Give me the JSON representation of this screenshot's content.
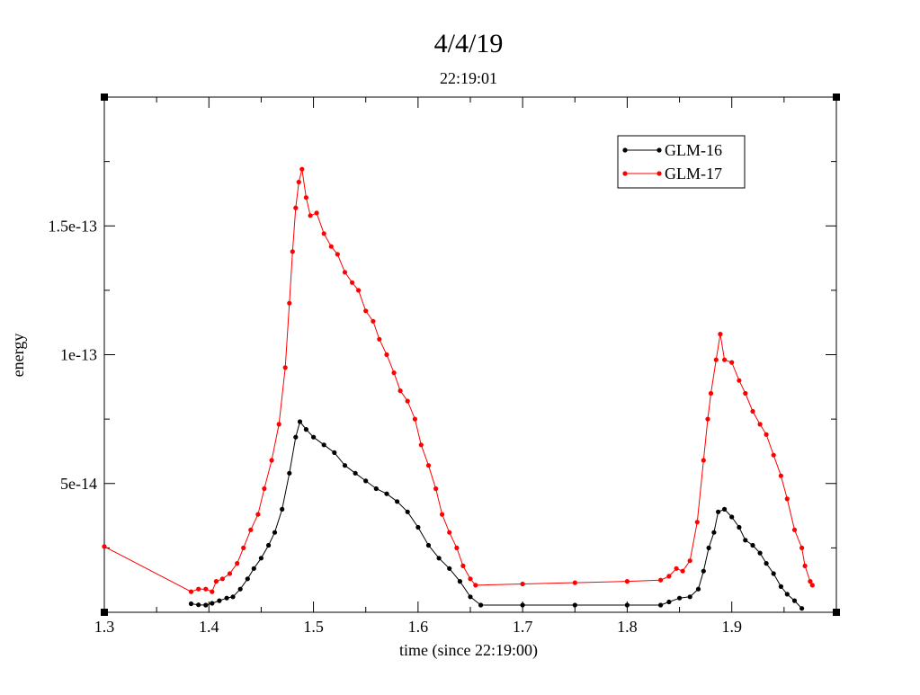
{
  "chart_data": {
    "type": "line",
    "title": "4/4/19",
    "subtitle": "22:19:01",
    "xlabel": "time (since 22:19:00)",
    "ylabel": "energy",
    "xlim": [
      1.3,
      2.0
    ],
    "ylim": [
      0,
      2e-13
    ],
    "xticks": [
      {
        "value": 1.3,
        "label": "1.3"
      },
      {
        "value": 1.4,
        "label": "1.4"
      },
      {
        "value": 1.5,
        "label": "1.5"
      },
      {
        "value": 1.6,
        "label": "1.6"
      },
      {
        "value": 1.7,
        "label": "1.7"
      },
      {
        "value": 1.8,
        "label": "1.8"
      },
      {
        "value": 1.9,
        "label": "1.9"
      }
    ],
    "yticks": [
      {
        "value": 5e-14,
        "label": "5e-14"
      },
      {
        "value": 1e-13,
        "label": "1e-13"
      },
      {
        "value": 1.5e-13,
        "label": "1.5e-13"
      }
    ],
    "grid": false,
    "legend_position": "top-right",
    "series": [
      {
        "name": "GLM-16",
        "color": "#000000",
        "points": [
          [
            1.383,
            3.3e-15
          ],
          [
            1.39,
            2.9e-15
          ],
          [
            1.397,
            2.8e-15
          ],
          [
            1.403,
            3.5e-15
          ],
          [
            1.41,
            4.5e-15
          ],
          [
            1.417,
            5.5e-15
          ],
          [
            1.423,
            6e-15
          ],
          [
            1.43,
            9e-15
          ],
          [
            1.437,
            1.3e-14
          ],
          [
            1.443,
            1.7e-14
          ],
          [
            1.45,
            2.1e-14
          ],
          [
            1.457,
            2.6e-14
          ],
          [
            1.463,
            3.1e-14
          ],
          [
            1.47,
            4e-14
          ],
          [
            1.477,
            5.4e-14
          ],
          [
            1.483,
            6.8e-14
          ],
          [
            1.487,
            7.4e-14
          ],
          [
            1.493,
            7.1e-14
          ],
          [
            1.5,
            6.8e-14
          ],
          [
            1.51,
            6.5e-14
          ],
          [
            1.52,
            6.2e-14
          ],
          [
            1.53,
            5.7e-14
          ],
          [
            1.54,
            5.4e-14
          ],
          [
            1.55,
            5.1e-14
          ],
          [
            1.56,
            4.8e-14
          ],
          [
            1.57,
            4.6e-14
          ],
          [
            1.58,
            4.3e-14
          ],
          [
            1.59,
            3.9e-14
          ],
          [
            1.6,
            3.3e-14
          ],
          [
            1.61,
            2.6e-14
          ],
          [
            1.62,
            2.1e-14
          ],
          [
            1.63,
            1.7e-14
          ],
          [
            1.64,
            1.2e-14
          ],
          [
            1.65,
            6e-15
          ],
          [
            1.66,
            2.8e-15
          ],
          [
            1.7,
            2.8e-15
          ],
          [
            1.75,
            2.8e-15
          ],
          [
            1.8,
            2.8e-15
          ],
          [
            1.832,
            2.8e-15
          ],
          [
            1.84,
            4e-15
          ],
          [
            1.85,
            5.5e-15
          ],
          [
            1.86,
            6e-15
          ],
          [
            1.868,
            9e-15
          ],
          [
            1.873,
            1.6e-14
          ],
          [
            1.878,
            2.5e-14
          ],
          [
            1.883,
            3.1e-14
          ],
          [
            1.887,
            3.9e-14
          ],
          [
            1.893,
            4e-14
          ],
          [
            1.9,
            3.7e-14
          ],
          [
            1.907,
            3.3e-14
          ],
          [
            1.913,
            2.8e-14
          ],
          [
            1.92,
            2.6e-14
          ],
          [
            1.927,
            2.3e-14
          ],
          [
            1.933,
            1.9e-14
          ],
          [
            1.94,
            1.5e-14
          ],
          [
            1.947,
            1e-14
          ],
          [
            1.953,
            7e-15
          ],
          [
            1.96,
            4.5e-15
          ],
          [
            1.967,
            1.5e-15
          ]
        ]
      },
      {
        "name": "GLM-17",
        "color": "#ff0000",
        "points": [
          [
            1.3,
            2.55e-14
          ],
          [
            1.383,
            8e-15
          ],
          [
            1.39,
            9e-15
          ],
          [
            1.397,
            9e-15
          ],
          [
            1.403,
            8e-15
          ],
          [
            1.407,
            1.2e-14
          ],
          [
            1.413,
            1.3e-14
          ],
          [
            1.42,
            1.5e-14
          ],
          [
            1.427,
            1.9e-14
          ],
          [
            1.433,
            2.5e-14
          ],
          [
            1.44,
            3.2e-14
          ],
          [
            1.447,
            3.8e-14
          ],
          [
            1.453,
            4.8e-14
          ],
          [
            1.46,
            5.9e-14
          ],
          [
            1.467,
            7.3e-14
          ],
          [
            1.473,
            9.5e-14
          ],
          [
            1.477,
            1.2e-13
          ],
          [
            1.48,
            1.4e-13
          ],
          [
            1.483,
            1.57e-13
          ],
          [
            1.486,
            1.67e-13
          ],
          [
            1.489,
            1.72e-13
          ],
          [
            1.493,
            1.61e-13
          ],
          [
            1.497,
            1.54e-13
          ],
          [
            1.503,
            1.55e-13
          ],
          [
            1.51,
            1.47e-13
          ],
          [
            1.517,
            1.42e-13
          ],
          [
            1.523,
            1.39e-13
          ],
          [
            1.53,
            1.32e-13
          ],
          [
            1.537,
            1.28e-13
          ],
          [
            1.543,
            1.25e-13
          ],
          [
            1.55,
            1.17e-13
          ],
          [
            1.557,
            1.13e-13
          ],
          [
            1.563,
            1.06e-13
          ],
          [
            1.57,
            1e-13
          ],
          [
            1.577,
            9.3e-14
          ],
          [
            1.583,
            8.6e-14
          ],
          [
            1.59,
            8.2e-14
          ],
          [
            1.597,
            7.5e-14
          ],
          [
            1.603,
            6.5e-14
          ],
          [
            1.61,
            5.7e-14
          ],
          [
            1.617,
            4.8e-14
          ],
          [
            1.623,
            3.8e-14
          ],
          [
            1.63,
            3.1e-14
          ],
          [
            1.637,
            2.5e-14
          ],
          [
            1.643,
            1.8e-14
          ],
          [
            1.65,
            1.3e-14
          ],
          [
            1.655,
            1.05e-14
          ],
          [
            1.7,
            1.1e-14
          ],
          [
            1.75,
            1.15e-14
          ],
          [
            1.8,
            1.2e-14
          ],
          [
            1.832,
            1.25e-14
          ],
          [
            1.84,
            1.4e-14
          ],
          [
            1.847,
            1.7e-14
          ],
          [
            1.853,
            1.6e-14
          ],
          [
            1.86,
            2e-14
          ],
          [
            1.867,
            3.5e-14
          ],
          [
            1.873,
            5.9e-14
          ],
          [
            1.877,
            7.5e-14
          ],
          [
            1.88,
            8.5e-14
          ],
          [
            1.885,
            9.8e-14
          ],
          [
            1.889,
            1.08e-13
          ],
          [
            1.893,
            9.8e-14
          ],
          [
            1.9,
            9.7e-14
          ],
          [
            1.907,
            9e-14
          ],
          [
            1.913,
            8.5e-14
          ],
          [
            1.92,
            7.8e-14
          ],
          [
            1.927,
            7.3e-14
          ],
          [
            1.933,
            6.9e-14
          ],
          [
            1.94,
            6.1e-14
          ],
          [
            1.947,
            5.3e-14
          ],
          [
            1.953,
            4.4e-14
          ],
          [
            1.96,
            3.2e-14
          ],
          [
            1.967,
            2.5e-14
          ],
          [
            1.97,
            1.8e-14
          ],
          [
            1.975,
            1.2e-14
          ],
          [
            1.977,
            1.05e-14
          ]
        ]
      }
    ]
  }
}
